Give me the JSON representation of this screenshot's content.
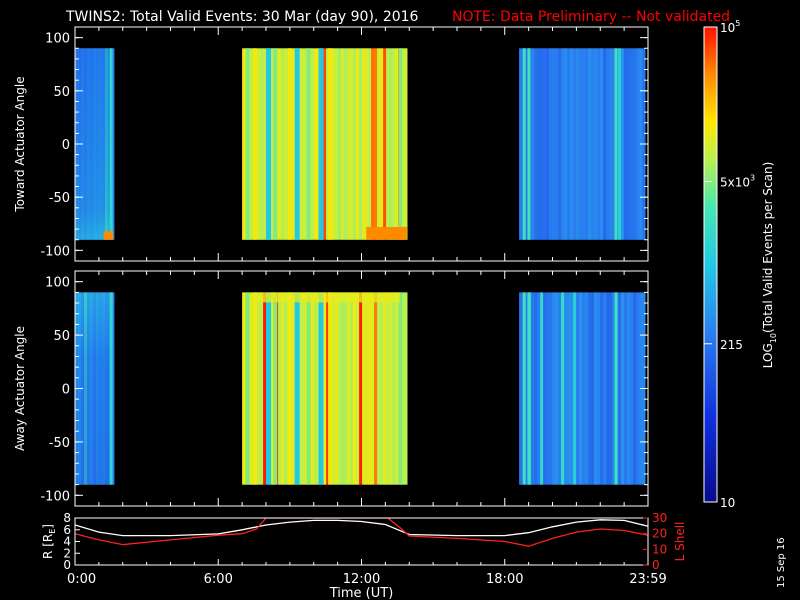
{
  "title": "TWINS2: Total Valid Events: 30 Mar (day  90), 2016",
  "note": "NOTE: Data Preliminary -- Not validated",
  "date_stamp": "15 Sep 16",
  "colors": {
    "background": "#000000",
    "axes": "#ffffff",
    "note": "#ff0000",
    "radius_line": "#ffffff",
    "lshell_line": "#ff2020"
  },
  "colorbar": {
    "label_main": "LOG",
    "label_sub": "10",
    "label_rest": "(Total Valid Events per Scan)",
    "ticks": [
      {
        "base": "10",
        "exp": "5",
        "value": 100000
      },
      {
        "base": "5x10",
        "exp": "3",
        "value": 5000
      },
      {
        "base": "215",
        "exp": "",
        "value": 215
      },
      {
        "base": "10",
        "exp": "",
        "value": 10
      }
    ],
    "range": [
      10,
      100000
    ],
    "scale": "log"
  },
  "chart_data": [
    {
      "type": "heatmap",
      "panel": "toward",
      "ylabel": "Toward Actuator Angle",
      "ylim": [
        -110,
        110
      ],
      "yticks": [
        "100",
        "50",
        "0",
        "-50",
        "-100"
      ],
      "ytick_values": [
        100,
        50,
        0,
        -50,
        -100
      ],
      "xlim_hours": [
        0,
        24
      ],
      "data_intervals_hours": [
        [
          0.0,
          1.6
        ],
        [
          7.0,
          13.9
        ],
        [
          18.6,
          23.8
        ]
      ],
      "angle_range": [
        -90,
        90
      ],
      "typical_log10_level": {
        "interval_1": 2.6,
        "interval_2": 4.0,
        "interval_3": 2.4
      }
    },
    {
      "type": "heatmap",
      "panel": "away",
      "ylabel": "Away Actuator Angle",
      "ylim": [
        -110,
        110
      ],
      "yticks": [
        "100",
        "50",
        "0",
        "-50",
        "-100"
      ],
      "ytick_values": [
        100,
        50,
        0,
        -50,
        -100
      ],
      "xlim_hours": [
        0,
        24
      ],
      "data_intervals_hours": [
        [
          0.0,
          1.6
        ],
        [
          7.0,
          13.9
        ],
        [
          18.6,
          23.8
        ]
      ],
      "angle_range": [
        -90,
        90
      ],
      "typical_log10_level": {
        "interval_1": 2.6,
        "interval_2": 4.0,
        "interval_3": 2.4
      }
    },
    {
      "type": "line",
      "panel": "orbit",
      "xlabel": "Time (UT)",
      "xticks": [
        "0:00",
        "6:00",
        "12:00",
        "18:00",
        "23:59"
      ],
      "xtick_hours": [
        0,
        6,
        12,
        18,
        24
      ],
      "ylabel_left": "R [R",
      "ylabel_left_sub": "E",
      "ylabel_left_end": "]",
      "ylim_left": [
        0,
        8
      ],
      "yticks_left": [
        "0",
        "2",
        "4",
        "6",
        "8"
      ],
      "ylabel_right": "L Shell",
      "ylim_right": [
        0,
        30
      ],
      "yticks_right": [
        "0",
        "10",
        "20",
        "30"
      ],
      "series": [
        {
          "name": "R",
          "axis": "left",
          "x": [
            0,
            1,
            2,
            4,
            6,
            7,
            8,
            9,
            10,
            11,
            12,
            13,
            14,
            16,
            18,
            19,
            20,
            21,
            22,
            23,
            24
          ],
          "y": [
            6.8,
            5.6,
            5.0,
            5.0,
            5.3,
            6.0,
            6.8,
            7.3,
            7.6,
            7.6,
            7.4,
            6.9,
            5.2,
            5.0,
            5.0,
            5.5,
            6.5,
            7.3,
            7.7,
            7.6,
            6.6
          ]
        },
        {
          "name": "L",
          "axis": "right",
          "x": [
            0,
            1,
            2,
            4,
            6,
            7,
            7.6,
            8.0,
            13.1,
            13.6,
            14,
            16,
            18,
            19,
            20,
            21,
            22,
            23,
            24
          ],
          "y": [
            20,
            16,
            13,
            16,
            19,
            20,
            23,
            30,
            30,
            24,
            18.5,
            17,
            15,
            12,
            17,
            21,
            23,
            22,
            19
          ]
        }
      ]
    }
  ]
}
